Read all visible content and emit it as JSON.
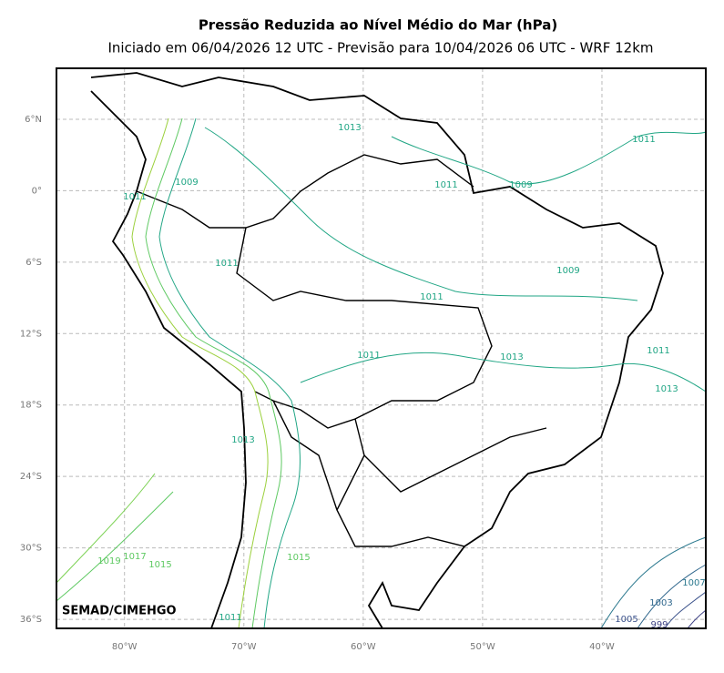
{
  "title": "Pressão Reduzida ao Nível Médio do Mar (hPa)",
  "subtitle": "Iniciado em 06/04/2026 12 UTC - Previsão para 10/04/2026 06 UTC - WRF 12km",
  "credit": "SEMAD/CIMEHGO",
  "xlim": [
    -85.7,
    -31.3
  ],
  "ylim": [
    -36.76,
    10.28
  ],
  "xticks": [
    {
      "value": -80,
      "label": "80°W"
    },
    {
      "value": -70,
      "label": "70°W"
    },
    {
      "value": -60,
      "label": "60°W"
    },
    {
      "value": -50,
      "label": "50°W"
    },
    {
      "value": -40,
      "label": "40°W"
    }
  ],
  "yticks": [
    {
      "value": 6,
      "label": "6°N"
    },
    {
      "value": 0,
      "label": "0°"
    },
    {
      "value": -6,
      "label": "6°S"
    },
    {
      "value": -12,
      "label": "12°S"
    },
    {
      "value": -18,
      "label": "18°S"
    },
    {
      "value": -24,
      "label": "24°S"
    },
    {
      "value": -30,
      "label": "30°S"
    },
    {
      "value": -36,
      "label": "36°S"
    }
  ],
  "grid": true,
  "contour_labels": [
    "1011",
    "1009",
    "1011",
    "1009",
    "1011",
    "1011",
    "1009",
    "1011",
    "1011",
    "1013",
    "1011",
    "1013",
    "1013",
    "1015",
    "1019",
    "1017",
    "1015",
    "1007",
    "1003",
    "1005",
    "999",
    "1013",
    "1011"
  ]
}
